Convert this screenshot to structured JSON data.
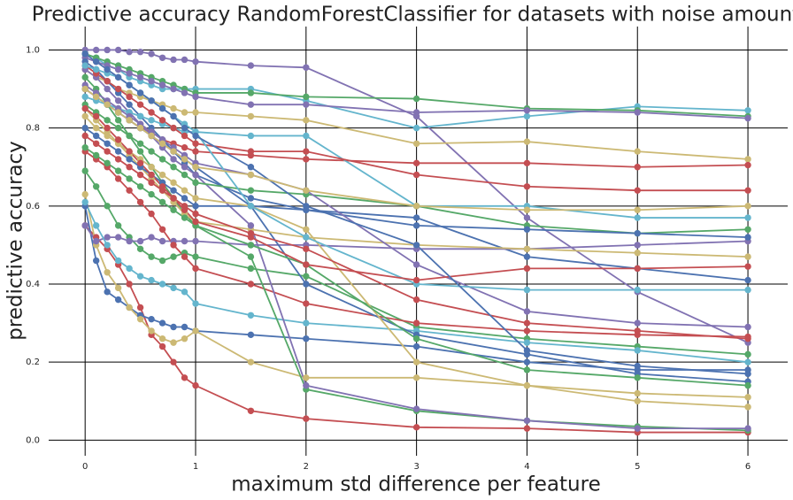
{
  "chart_data": {
    "type": "line",
    "title": "Predictive accuracy RandomForestClassifier for datasets with noise amount",
    "x_label": "maximum std difference per feature",
    "y_label": "predictive accuracy",
    "x": [
      0,
      0.1,
      0.2,
      0.3,
      0.4,
      0.5,
      0.6,
      0.7,
      0.8,
      0.9,
      1,
      1.5,
      2,
      3,
      4,
      5,
      6
    ],
    "xlim": [
      -0.33,
      6.36
    ],
    "ylim": [
      -0.04,
      1.06
    ],
    "xticks": [
      0,
      1,
      2,
      3,
      4,
      5,
      6
    ],
    "yticks": [
      {
        "value": 0,
        "label": "0.0"
      },
      0.2,
      0.4,
      0.6,
      0.8,
      {
        "value": 1,
        "label": "1.0"
      }
    ],
    "grid": true,
    "series": [
      {
        "color": "#8172b2",
        "values": [
          1.0,
          1.0,
          1.0,
          1.0,
          0.995,
          0.995,
          0.99,
          0.98,
          0.975,
          0.975,
          0.97,
          0.96,
          0.955,
          0.83,
          0.57,
          0.38,
          0.25
        ]
      },
      {
        "color": "#c44e52",
        "values": [
          0.55,
          0.52,
          0.49,
          0.45,
          0.4,
          0.34,
          0.27,
          0.24,
          0.2,
          0.16,
          0.14,
          0.075,
          0.055,
          0.033,
          0.03,
          0.02,
          0.02
        ]
      },
      {
        "color": "#4c72b0",
        "values": [
          0.6,
          0.46,
          0.38,
          0.36,
          0.34,
          0.32,
          0.31,
          0.3,
          0.29,
          0.29,
          0.28,
          0.27,
          0.26,
          0.24,
          0.2,
          0.18,
          0.18
        ]
      },
      {
        "color": "#ccb974",
        "values": [
          0.63,
          0.5,
          0.43,
          0.39,
          0.34,
          0.31,
          0.28,
          0.26,
          0.25,
          0.26,
          0.28,
          0.2,
          0.16,
          0.16,
          0.14,
          0.1,
          0.085
        ]
      },
      {
        "color": "#64b5cd",
        "values": [
          0.99,
          0.98,
          0.96,
          0.95,
          0.93,
          0.92,
          0.91,
          0.9,
          0.9,
          0.9,
          0.9,
          0.9,
          0.87,
          0.8,
          0.83,
          0.855,
          0.845
        ]
      },
      {
        "color": "#55a868",
        "values": [
          0.99,
          0.98,
          0.97,
          0.96,
          0.95,
          0.94,
          0.93,
          0.92,
          0.91,
          0.9,
          0.89,
          0.89,
          0.88,
          0.875,
          0.85,
          0.845,
          0.83
        ]
      },
      {
        "color": "#8172b2",
        "values": [
          0.98,
          0.97,
          0.96,
          0.95,
          0.94,
          0.93,
          0.92,
          0.91,
          0.9,
          0.89,
          0.88,
          0.86,
          0.86,
          0.84,
          0.845,
          0.84,
          0.825
        ]
      },
      {
        "color": "#ccb974",
        "values": [
          0.95,
          0.93,
          0.92,
          0.9,
          0.89,
          0.88,
          0.87,
          0.86,
          0.85,
          0.84,
          0.84,
          0.83,
          0.82,
          0.76,
          0.765,
          0.74,
          0.72
        ]
      },
      {
        "color": "#c44e52",
        "values": [
          0.9,
          0.88,
          0.86,
          0.84,
          0.82,
          0.8,
          0.79,
          0.77,
          0.76,
          0.75,
          0.74,
          0.73,
          0.72,
          0.71,
          0.71,
          0.7,
          0.705
        ]
      },
      {
        "color": "#4c72b0",
        "values": [
          0.97,
          0.95,
          0.92,
          0.89,
          0.86,
          0.83,
          0.8,
          0.77,
          0.74,
          0.71,
          0.68,
          0.62,
          0.59,
          0.57,
          0.47,
          0.44,
          0.41
        ]
      },
      {
        "color": "#55a868",
        "values": [
          0.69,
          0.65,
          0.6,
          0.55,
          0.52,
          0.49,
          0.47,
          0.46,
          0.47,
          0.48,
          0.47,
          0.44,
          0.42,
          0.29,
          0.26,
          0.24,
          0.22
        ]
      },
      {
        "color": "#8172b2",
        "values": [
          0.55,
          0.51,
          0.52,
          0.52,
          0.51,
          0.51,
          0.52,
          0.51,
          0.51,
          0.51,
          0.51,
          0.5,
          0.5,
          0.49,
          0.49,
          0.5,
          0.51
        ]
      },
      {
        "color": "#64b5cd",
        "values": [
          0.61,
          0.55,
          0.5,
          0.46,
          0.44,
          0.42,
          0.41,
          0.4,
          0.39,
          0.38,
          0.35,
          0.32,
          0.3,
          0.28,
          0.25,
          0.23,
          0.2
        ]
      },
      {
        "color": "#c44e52",
        "values": [
          0.74,
          0.72,
          0.7,
          0.67,
          0.64,
          0.61,
          0.58,
          0.54,
          0.5,
          0.47,
          0.44,
          0.4,
          0.35,
          0.3,
          0.28,
          0.27,
          0.265
        ]
      },
      {
        "color": "#55a868",
        "values": [
          0.93,
          0.9,
          0.86,
          0.82,
          0.78,
          0.74,
          0.7,
          0.66,
          0.62,
          0.58,
          0.55,
          0.47,
          0.13,
          0.075,
          0.05,
          0.035,
          0.025
        ]
      },
      {
        "color": "#4c72b0",
        "values": [
          0.9,
          0.88,
          0.86,
          0.84,
          0.82,
          0.8,
          0.78,
          0.76,
          0.74,
          0.72,
          0.7,
          0.6,
          0.4,
          0.27,
          0.22,
          0.17,
          0.15
        ]
      },
      {
        "color": "#ccb974",
        "values": [
          0.85,
          0.82,
          0.79,
          0.76,
          0.73,
          0.7,
          0.67,
          0.64,
          0.61,
          0.58,
          0.56,
          0.54,
          0.52,
          0.5,
          0.49,
          0.48,
          0.47
        ]
      },
      {
        "color": "#8172b2",
        "values": [
          0.95,
          0.93,
          0.9,
          0.87,
          0.84,
          0.81,
          0.78,
          0.75,
          0.72,
          0.7,
          0.68,
          0.55,
          0.14,
          0.08,
          0.05,
          0.03,
          0.03
        ]
      },
      {
        "color": "#64b5cd",
        "values": [
          0.88,
          0.87,
          0.86,
          0.85,
          0.84,
          0.83,
          0.82,
          0.81,
          0.8,
          0.79,
          0.79,
          0.78,
          0.78,
          0.6,
          0.6,
          0.57,
          0.57
        ]
      },
      {
        "color": "#c44e52",
        "values": [
          0.96,
          0.94,
          0.92,
          0.9,
          0.88,
          0.86,
          0.84,
          0.82,
          0.8,
          0.78,
          0.76,
          0.74,
          0.74,
          0.68,
          0.65,
          0.64,
          0.64
        ]
      },
      {
        "color": "#55a868",
        "values": [
          0.86,
          0.84,
          0.82,
          0.8,
          0.78,
          0.76,
          0.74,
          0.72,
          0.7,
          0.68,
          0.66,
          0.64,
          0.63,
          0.6,
          0.55,
          0.53,
          0.54
        ]
      },
      {
        "color": "#4c72b0",
        "values": [
          0.8,
          0.78,
          0.76,
          0.74,
          0.72,
          0.7,
          0.68,
          0.66,
          0.64,
          0.62,
          0.6,
          0.6,
          0.59,
          0.55,
          0.54,
          0.53,
          0.52
        ]
      },
      {
        "color": "#ccb974",
        "values": [
          0.83,
          0.8,
          0.78,
          0.76,
          0.74,
          0.72,
          0.7,
          0.68,
          0.66,
          0.64,
          0.62,
          0.6,
          0.54,
          0.2,
          0.14,
          0.12,
          0.11
        ]
      },
      {
        "color": "#c44e52",
        "values": [
          0.78,
          0.76,
          0.74,
          0.72,
          0.7,
          0.68,
          0.66,
          0.64,
          0.62,
          0.6,
          0.58,
          0.53,
          0.49,
          0.36,
          0.3,
          0.28,
          0.26
        ]
      },
      {
        "color": "#8172b2",
        "values": [
          0.91,
          0.89,
          0.87,
          0.85,
          0.83,
          0.81,
          0.79,
          0.77,
          0.75,
          0.73,
          0.71,
          0.68,
          0.64,
          0.45,
          0.33,
          0.3,
          0.29
        ]
      },
      {
        "color": "#55a868",
        "values": [
          0.75,
          0.73,
          0.71,
          0.69,
          0.67,
          0.65,
          0.63,
          0.61,
          0.59,
          0.57,
          0.55,
          0.5,
          0.45,
          0.26,
          0.18,
          0.16,
          0.14
        ]
      },
      {
        "color": "#64b5cd",
        "values": [
          0.96,
          0.95,
          0.94,
          0.93,
          0.91,
          0.89,
          0.87,
          0.85,
          0.83,
          0.81,
          0.79,
          0.6,
          0.52,
          0.4,
          0.385,
          0.385,
          0.385
        ]
      },
      {
        "color": "#c44e52",
        "values": [
          0.85,
          0.83,
          0.8,
          0.77,
          0.74,
          0.71,
          0.68,
          0.65,
          0.62,
          0.59,
          0.56,
          0.52,
          0.45,
          0.41,
          0.44,
          0.44,
          0.445
        ]
      },
      {
        "color": "#4c72b0",
        "values": [
          0.99,
          0.97,
          0.95,
          0.93,
          0.91,
          0.89,
          0.87,
          0.85,
          0.83,
          0.8,
          0.78,
          0.7,
          0.6,
          0.5,
          0.23,
          0.19,
          0.17
        ]
      },
      {
        "color": "#ccb974",
        "values": [
          0.9,
          0.88,
          0.86,
          0.84,
          0.82,
          0.8,
          0.78,
          0.76,
          0.74,
          0.72,
          0.7,
          0.68,
          0.64,
          0.6,
          0.59,
          0.59,
          0.6
        ]
      }
    ]
  }
}
